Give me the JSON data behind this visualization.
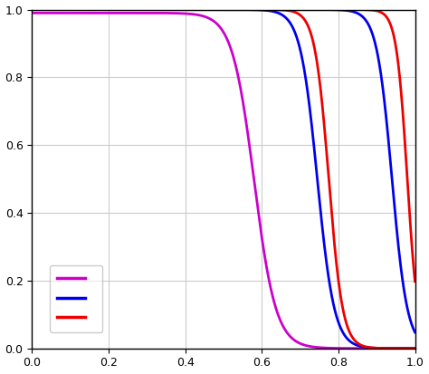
{
  "curves": [
    {
      "color": "#cc00cc",
      "label": " ",
      "linewidth": 2.0,
      "inflection": 0.58,
      "steepness": 35.0,
      "y_start": 0.99
    },
    {
      "color": "#0000ee",
      "label": " ",
      "linewidth": 2.0,
      "inflection": 0.745,
      "steepness": 45.0,
      "y_start": 1.0
    },
    {
      "color": "#ee0000",
      "label": " ",
      "linewidth": 2.0,
      "inflection": 0.775,
      "steepness": 55.0,
      "y_start": 1.0
    },
    {
      "color": "#0000ee",
      "label": null,
      "linewidth": 2.0,
      "inflection": 0.94,
      "steepness": 50.0,
      "y_start": 1.0
    },
    {
      "color": "#ee0000",
      "label": null,
      "linewidth": 2.0,
      "inflection": 0.98,
      "steepness": 70.0,
      "y_start": 1.0
    }
  ],
  "xlim": [
    0.0,
    1.0
  ],
  "ylim": [
    0.0,
    1.0
  ],
  "xticks": [
    0.0,
    0.2,
    0.4,
    0.6,
    0.8,
    1.0
  ],
  "yticks": [
    0.0,
    0.2,
    0.4,
    0.6,
    0.8,
    1.0
  ],
  "grid_color": "#cccccc",
  "background_color": "#ffffff",
  "legend_colors": [
    "#cc00cc",
    "#0000ee",
    "#ee0000"
  ],
  "legend_labels": [
    " ",
    " ",
    " "
  ]
}
